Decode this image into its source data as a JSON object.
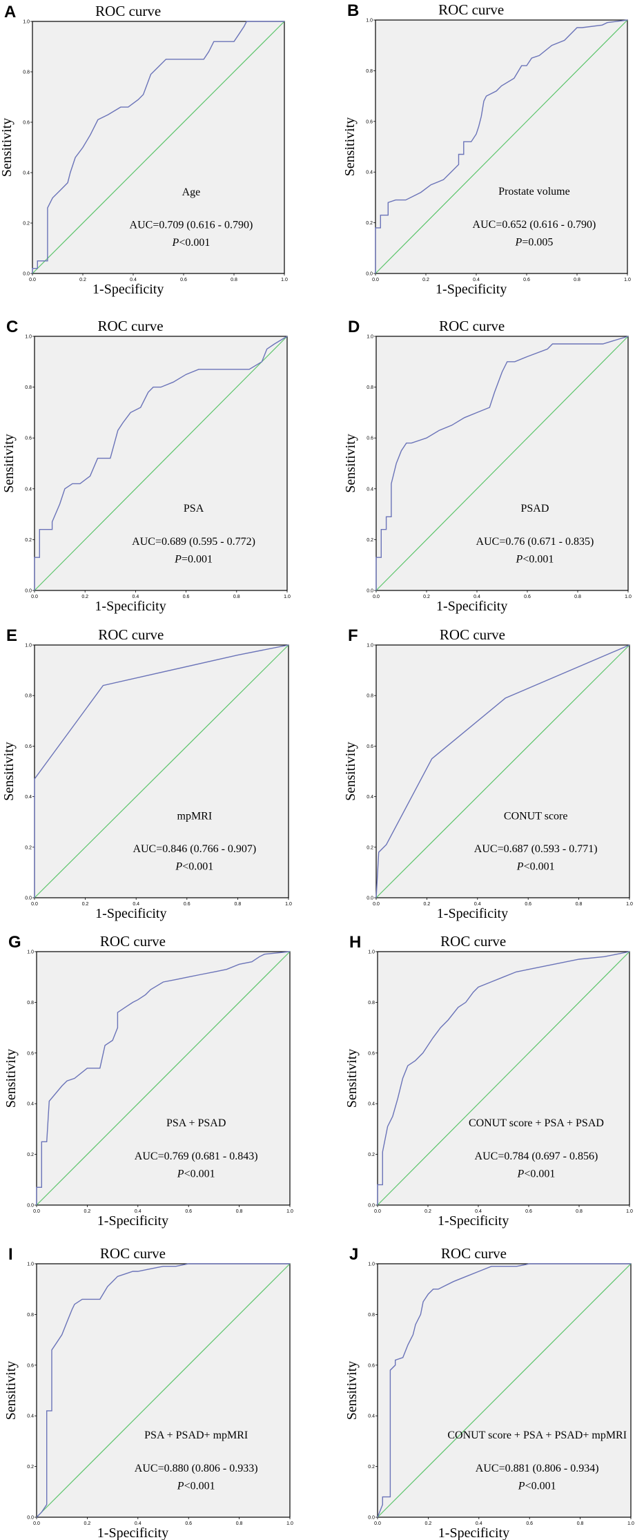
{
  "chart_data": [
    {
      "panel": "A",
      "type": "line",
      "title": "ROC curve",
      "xlabel": "1-Specificity",
      "ylabel": "Sensitivity",
      "xlim": [
        0,
        1
      ],
      "ylim": [
        0,
        1
      ],
      "variable": "Age",
      "auc": "AUC=0.709 (0.616 - 0.790)",
      "p_prefix": "P",
      "p_rest": "<0.001",
      "x": [
        0,
        0,
        0.02,
        0.02,
        0.06,
        0.06,
        0.08,
        0.11,
        0.14,
        0.15,
        0.17,
        0.2,
        0.23,
        0.26,
        0.3,
        0.35,
        0.38,
        0.42,
        0.44,
        0.47,
        0.5,
        0.53,
        0.55,
        0.6,
        0.65,
        0.68,
        0.7,
        0.72,
        0.75,
        0.8,
        0.82,
        0.84,
        0.85,
        1
      ],
      "y": [
        0,
        0.02,
        0.02,
        0.05,
        0.05,
        0.26,
        0.3,
        0.33,
        0.36,
        0.4,
        0.46,
        0.5,
        0.55,
        0.61,
        0.63,
        0.66,
        0.66,
        0.69,
        0.71,
        0.79,
        0.82,
        0.85,
        0.85,
        0.85,
        0.85,
        0.85,
        0.88,
        0.92,
        0.92,
        0.92,
        0.95,
        0.98,
        1,
        1
      ]
    },
    {
      "panel": "B",
      "type": "line",
      "title": "ROC curve",
      "xlabel": "1-Specificity",
      "ylabel": "Sensitivity",
      "xlim": [
        0,
        1
      ],
      "ylim": [
        0,
        1
      ],
      "variable": "Prostate volume",
      "auc": "AUC=0.652 (0.616 - 0.790)",
      "p_prefix": "P",
      "p_rest": "=0.005",
      "x": [
        0,
        0,
        0.02,
        0.02,
        0.05,
        0.05,
        0.08,
        0.12,
        0.18,
        0.22,
        0.27,
        0.3,
        0.33,
        0.33,
        0.35,
        0.35,
        0.38,
        0.4,
        0.41,
        0.42,
        0.43,
        0.44,
        0.48,
        0.5,
        0.55,
        0.58,
        0.6,
        0.62,
        0.65,
        0.7,
        0.75,
        0.8,
        0.82,
        0.9,
        0.92,
        1
      ],
      "y": [
        0,
        0.18,
        0.18,
        0.23,
        0.23,
        0.28,
        0.29,
        0.29,
        0.32,
        0.35,
        0.37,
        0.4,
        0.43,
        0.47,
        0.47,
        0.52,
        0.52,
        0.55,
        0.58,
        0.62,
        0.68,
        0.7,
        0.72,
        0.74,
        0.77,
        0.82,
        0.82,
        0.85,
        0.86,
        0.9,
        0.92,
        0.97,
        0.97,
        0.98,
        0.99,
        1
      ]
    },
    {
      "panel": "C",
      "type": "line",
      "title": "ROC curve",
      "xlabel": "1-Specificity",
      "ylabel": "Sensitivity",
      "xlim": [
        0,
        1
      ],
      "ylim": [
        0,
        1
      ],
      "variable": "PSA",
      "auc": "AUC=0.689 (0.595 - 0.772)",
      "p_prefix": "P",
      "p_rest": "=0.001",
      "x": [
        0,
        0,
        0.02,
        0.02,
        0.07,
        0.07,
        0.1,
        0.12,
        0.15,
        0.18,
        0.22,
        0.25,
        0.3,
        0.33,
        0.35,
        0.38,
        0.42,
        0.45,
        0.47,
        0.5,
        0.55,
        0.6,
        0.65,
        0.7,
        0.75,
        0.8,
        0.85,
        0.9,
        0.92,
        0.95,
        1
      ],
      "y": [
        0,
        0.13,
        0.13,
        0.24,
        0.24,
        0.27,
        0.34,
        0.4,
        0.42,
        0.42,
        0.45,
        0.52,
        0.52,
        0.63,
        0.66,
        0.7,
        0.72,
        0.78,
        0.8,
        0.8,
        0.82,
        0.85,
        0.87,
        0.87,
        0.87,
        0.87,
        0.87,
        0.9,
        0.95,
        0.97,
        1
      ]
    },
    {
      "panel": "D",
      "type": "line",
      "title": "ROC curve",
      "xlabel": "1-Specificity",
      "ylabel": "Sensitivity",
      "xlim": [
        0,
        1
      ],
      "ylim": [
        0,
        1
      ],
      "variable": "PSAD",
      "auc": "AUC=0.76 (0.671 - 0.835)",
      "p_prefix": "P",
      "p_rest": "<0.001",
      "x": [
        0,
        0,
        0.02,
        0.02,
        0.04,
        0.04,
        0.06,
        0.06,
        0.08,
        0.1,
        0.12,
        0.14,
        0.2,
        0.25,
        0.3,
        0.35,
        0.4,
        0.45,
        0.47,
        0.5,
        0.52,
        0.55,
        0.6,
        0.68,
        0.7,
        0.8,
        0.9,
        1
      ],
      "y": [
        0,
        0.13,
        0.13,
        0.24,
        0.24,
        0.29,
        0.29,
        0.42,
        0.5,
        0.55,
        0.58,
        0.58,
        0.6,
        0.63,
        0.65,
        0.68,
        0.7,
        0.72,
        0.78,
        0.86,
        0.9,
        0.9,
        0.92,
        0.95,
        0.97,
        0.97,
        0.97,
        1
      ]
    },
    {
      "panel": "E",
      "type": "line",
      "title": "ROC curve",
      "xlabel": "1-Specificity",
      "ylabel": "Sensitivity",
      "xlim": [
        0,
        1
      ],
      "ylim": [
        0,
        1
      ],
      "variable": "mpMRI",
      "auc": "AUC=0.846 (0.766 - 0.907)",
      "p_prefix": "P",
      "p_rest": "<0.001",
      "x": [
        0,
        0,
        0.27,
        0.8,
        1
      ],
      "y": [
        0,
        0.47,
        0.84,
        0.96,
        1
      ]
    },
    {
      "panel": "F",
      "type": "line",
      "title": "ROC curve",
      "xlabel": "1-Specificity",
      "ylabel": "Sensitivity",
      "xlim": [
        0,
        1
      ],
      "ylim": [
        0,
        1
      ],
      "variable": "CONUT score",
      "auc": "AUC=0.687 (0.593 - 0.771)",
      "p_prefix": "P",
      "p_rest": "<0.001",
      "x": [
        0,
        0.01,
        0.04,
        0.22,
        0.51,
        1
      ],
      "y": [
        0,
        0.18,
        0.21,
        0.55,
        0.79,
        1
      ]
    },
    {
      "panel": "G",
      "type": "line",
      "title": "ROC curve",
      "xlabel": "1-Specificity",
      "ylabel": "Sensitivity",
      "xlim": [
        0,
        1
      ],
      "ylim": [
        0,
        1
      ],
      "variable": "PSA + PSAD",
      "auc": "AUC=0.769 (0.681 - 0.843)",
      "p_prefix": "P",
      "p_rest": "<0.001",
      "x": [
        0,
        0,
        0.02,
        0.02,
        0.04,
        0.05,
        0.1,
        0.12,
        0.15,
        0.2,
        0.25,
        0.27,
        0.3,
        0.32,
        0.32,
        0.35,
        0.38,
        0.4,
        0.43,
        0.45,
        0.5,
        0.55,
        0.6,
        0.65,
        0.7,
        0.75,
        0.8,
        0.85,
        0.88,
        0.9,
        1
      ],
      "y": [
        0,
        0.07,
        0.07,
        0.25,
        0.25,
        0.41,
        0.47,
        0.49,
        0.5,
        0.54,
        0.54,
        0.63,
        0.65,
        0.7,
        0.76,
        0.78,
        0.8,
        0.81,
        0.83,
        0.85,
        0.88,
        0.89,
        0.9,
        0.91,
        0.92,
        0.93,
        0.95,
        0.96,
        0.98,
        0.99,
        1
      ]
    },
    {
      "panel": "H",
      "type": "line",
      "title": "ROC curve",
      "xlabel": "1-Specificity",
      "ylabel": "Sensitivity",
      "xlim": [
        0,
        1
      ],
      "ylim": [
        0,
        1
      ],
      "variable": "CONUT score + PSA + PSAD",
      "auc": "AUC=0.784 (0.697 - 0.856)",
      "p_prefix": "P",
      "p_rest": "<0.001",
      "x": [
        0,
        0,
        0.02,
        0.02,
        0.04,
        0.06,
        0.08,
        0.1,
        0.12,
        0.15,
        0.18,
        0.2,
        0.22,
        0.25,
        0.28,
        0.32,
        0.35,
        0.38,
        0.4,
        0.45,
        0.5,
        0.55,
        0.6,
        0.7,
        0.8,
        0.9,
        0.95,
        1
      ],
      "y": [
        0,
        0.08,
        0.08,
        0.21,
        0.31,
        0.35,
        0.42,
        0.5,
        0.55,
        0.57,
        0.6,
        0.63,
        0.66,
        0.7,
        0.73,
        0.78,
        0.8,
        0.84,
        0.86,
        0.88,
        0.9,
        0.92,
        0.93,
        0.95,
        0.97,
        0.98,
        0.99,
        1
      ]
    },
    {
      "panel": "I",
      "type": "line",
      "title": "ROC curve",
      "xlabel": "1-Specificity",
      "ylabel": "Sensitivity",
      "xlim": [
        0,
        1
      ],
      "ylim": [
        0,
        1
      ],
      "variable": "PSA + PSAD+ mpMRI",
      "auc": "AUC=0.880 (0.806 - 0.933)",
      "p_prefix": "P",
      "p_rest": "<0.001",
      "x": [
        0,
        0.02,
        0.04,
        0.04,
        0.06,
        0.06,
        0.08,
        0.1,
        0.12,
        0.14,
        0.15,
        0.18,
        0.2,
        0.22,
        0.25,
        0.28,
        0.3,
        0.32,
        0.35,
        0.38,
        0.4,
        0.45,
        0.5,
        0.55,
        0.6,
        0.7,
        1
      ],
      "y": [
        0,
        0.02,
        0.05,
        0.42,
        0.42,
        0.66,
        0.69,
        0.72,
        0.77,
        0.82,
        0.84,
        0.86,
        0.86,
        0.86,
        0.86,
        0.91,
        0.93,
        0.95,
        0.96,
        0.97,
        0.97,
        0.98,
        0.99,
        0.99,
        1,
        1,
        1
      ]
    },
    {
      "panel": "J",
      "type": "line",
      "title": "ROC curve",
      "xlabel": "1-Specificity",
      "ylabel": "Sensitivity",
      "xlim": [
        0,
        1
      ],
      "ylim": [
        0,
        1
      ],
      "variable": "CONUT score + PSA + PSAD+ mpMRI",
      "auc": "AUC=0.881 (0.806 - 0.934)",
      "p_prefix": "P",
      "p_rest": "<0.001",
      "x": [
        0,
        0.02,
        0.02,
        0.05,
        0.05,
        0.07,
        0.07,
        0.1,
        0.12,
        0.14,
        0.15,
        0.17,
        0.18,
        0.2,
        0.22,
        0.24,
        0.26,
        0.3,
        0.35,
        0.4,
        0.45,
        0.55,
        0.6,
        1
      ],
      "y": [
        0,
        0.05,
        0.08,
        0.08,
        0.58,
        0.6,
        0.62,
        0.63,
        0.68,
        0.72,
        0.76,
        0.8,
        0.85,
        0.88,
        0.9,
        0.9,
        0.91,
        0.93,
        0.95,
        0.97,
        0.99,
        0.99,
        1,
        1
      ]
    }
  ]
}
